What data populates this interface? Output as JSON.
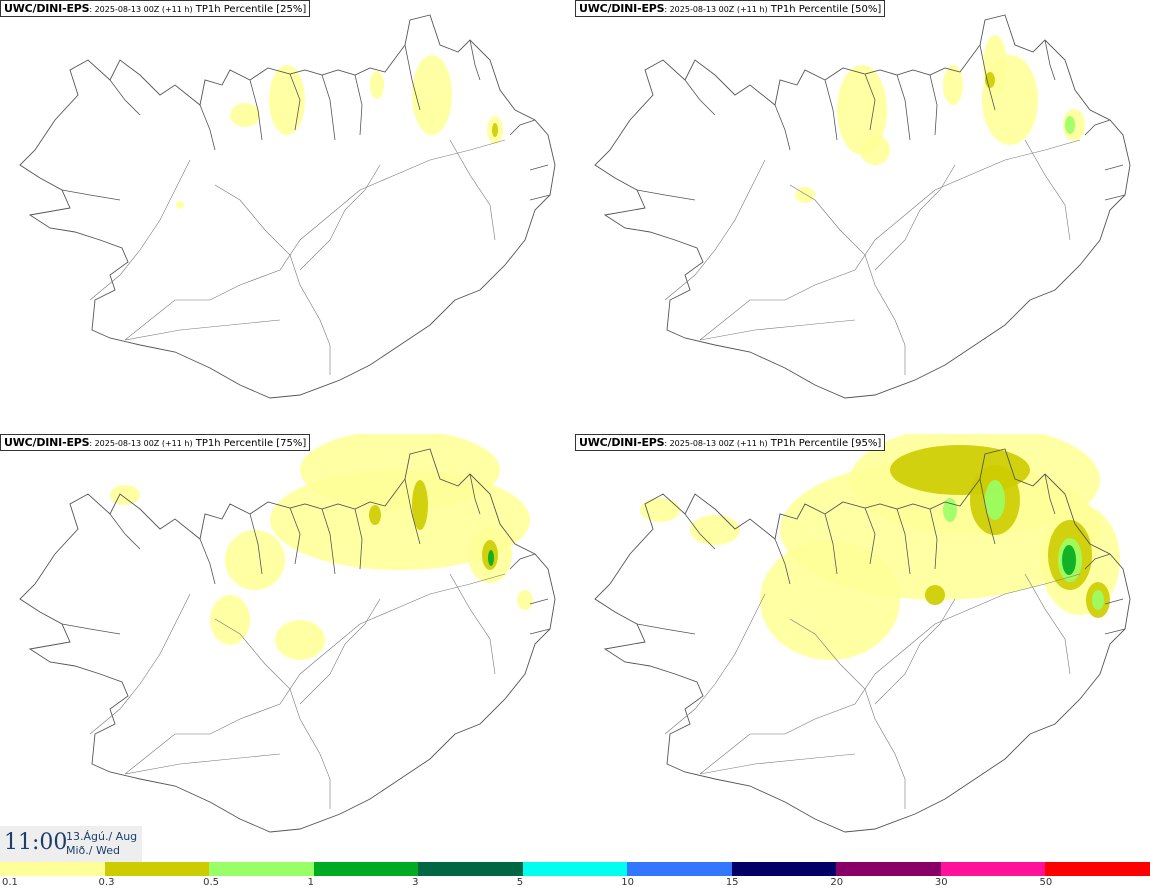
{
  "panels": [
    {
      "model": "UWC/DINI-EPS",
      "init": ": 2025-08-13 00Z (+11 h)",
      "variable": " TP1h Percentile [25%]",
      "level": 1
    },
    {
      "model": "UWC/DINI-EPS",
      "init": ": 2025-08-13 00Z (+11 h)",
      "variable": " TP1h Percentile [50%]",
      "level": 2
    },
    {
      "model": "UWC/DINI-EPS",
      "init": ": 2025-08-13 00Z (+11 h)",
      "variable": " TP1h Percentile [75%]",
      "level": 3
    },
    {
      "model": "UWC/DINI-EPS",
      "init": ": 2025-08-13 00Z (+11 h)",
      "variable": " TP1h Percentile [95%]",
      "level": 4
    }
  ],
  "valid_time": "11:00",
  "valid_date_line1": "13.Ágú./ Aug",
  "valid_date_line2": "Mið./ Wed",
  "legend": {
    "colors": [
      "#ffff99",
      "#cccc00",
      "#99ff66",
      "#00aa22",
      "#006644",
      "#00ffee",
      "#3377ff",
      "#000066",
      "#880066",
      "#ff1199",
      "#ff0000"
    ],
    "labels": [
      "0.1",
      "0.3",
      "0.5",
      "1",
      "3",
      "5",
      "10",
      "15",
      "20",
      "30",
      "50"
    ]
  }
}
